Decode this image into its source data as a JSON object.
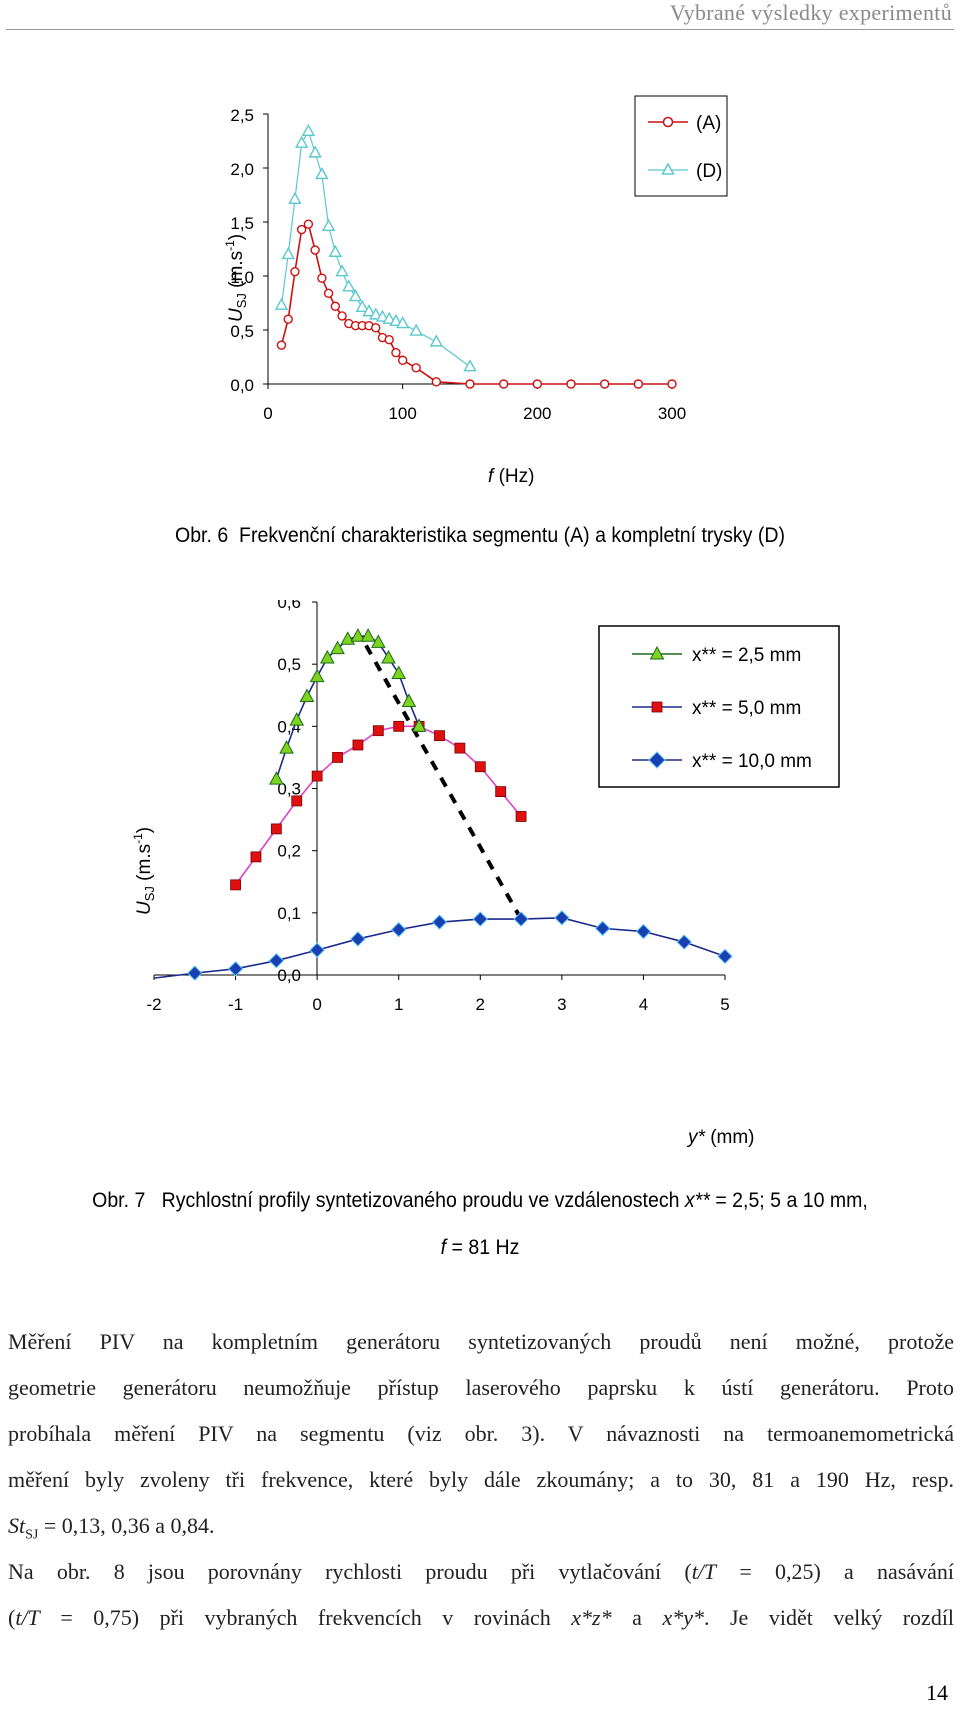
{
  "header": {
    "running_title": "Vybrané výsledky experimentů"
  },
  "figure6": {
    "caption_prefix": "Obr. 6",
    "caption_text": "Frekvenční charakteristika segmentu (A) a kompletní trysky (D)",
    "ylabel_main": "U",
    "ylabel_sub": "SJ",
    "ylabel_unit": "(m.s",
    "ylabel_exp": "-1",
    "ylabel_close": ")",
    "xlabel_var": "f",
    "xlabel_unit": "(Hz)",
    "legend": [
      "(A)",
      "(D)"
    ],
    "colors": {
      "A": "#cc1111",
      "D": "#5bc8cf"
    }
  },
  "figure7": {
    "caption_line1_prefix": "Obr. 7",
    "caption_line1_text": "Rychlostní profily syntetizovaného proudu ve vzdálenostech",
    "caption_line1_var": "x**",
    "caption_line1_rest": "= 2,5; 5 a 10 mm,",
    "caption_line2_var": "f",
    "caption_line2_rest": "= 81 Hz",
    "ylabel_main": "U",
    "ylabel_sub": "SJ",
    "ylabel_unit": "(m.s",
    "ylabel_exp": "-1",
    "ylabel_close": ")",
    "xlabel_var": "y*",
    "xlabel_unit": "(mm)",
    "legend": [
      "x** = 2,5 mm",
      "x** = 5,0 mm",
      "x** = 10,0 mm"
    ],
    "colors": {
      "s1_line": "#1a6b1a",
      "s1_marker": "#7ed321",
      "s2_line": "#e040c8",
      "s2_marker": "#e01010",
      "s3_line": "#1a2a8c",
      "s3_marker": "#1a3fb0"
    }
  },
  "chart_data": [
    {
      "type": "line",
      "title": "",
      "xlabel": "f (Hz)",
      "ylabel": "U SJ (m.s-1)",
      "xlim": [
        0,
        300
      ],
      "ylim": [
        0,
        2.5
      ],
      "xticks": [
        "0",
        "100",
        "200",
        "300"
      ],
      "yticks": [
        "0,0",
        "0,5",
        "1,0",
        "1,5",
        "2,0",
        "2,5"
      ],
      "legend_position": "top-right",
      "grid": false,
      "series": [
        {
          "name": "(A)",
          "x": [
            10,
            15,
            20,
            25,
            30,
            35,
            40,
            45,
            50,
            55,
            60,
            65,
            70,
            75,
            80,
            85,
            90,
            95,
            100,
            110,
            125,
            150,
            175,
            200,
            225,
            250,
            275,
            300
          ],
          "y": [
            0.36,
            0.6,
            1.04,
            1.43,
            1.48,
            1.24,
            0.98,
            0.84,
            0.72,
            0.63,
            0.56,
            0.54,
            0.54,
            0.54,
            0.52,
            0.43,
            0.41,
            0.29,
            0.22,
            0.15,
            0.02,
            0.0,
            0.0,
            0.0,
            0.0,
            0.0,
            0.0,
            0.0
          ]
        },
        {
          "name": "(D)",
          "x": [
            10,
            15,
            20,
            25,
            30,
            35,
            40,
            45,
            50,
            55,
            60,
            65,
            70,
            75,
            80,
            85,
            90,
            95,
            100,
            110,
            125,
            150
          ],
          "y": [
            0.73,
            1.2,
            1.71,
            2.23,
            2.34,
            2.14,
            1.94,
            1.46,
            1.22,
            1.04,
            0.9,
            0.81,
            0.71,
            0.67,
            0.64,
            0.62,
            0.6,
            0.58,
            0.56,
            0.49,
            0.39,
            0.16
          ]
        }
      ]
    },
    {
      "type": "line",
      "title": "",
      "xlabel": "y* (mm)",
      "ylabel": "U SJ (m.s-1)",
      "xlim": [
        -2,
        5
      ],
      "ylim": [
        0,
        0.6
      ],
      "xticks": [
        "-2",
        "-1",
        "0",
        "1",
        "2",
        "3",
        "4",
        "5"
      ],
      "yticks": [
        "0,0",
        "0,1",
        "0,2",
        "0,3",
        "0,4",
        "0,5",
        "0,6"
      ],
      "legend_position": "top-right",
      "grid": false,
      "series": [
        {
          "name": "x** = 2,5 mm",
          "x": [
            -0.5,
            -0.375,
            -0.25,
            -0.125,
            0,
            0.125,
            0.25,
            0.375,
            0.5,
            0.625,
            0.75,
            0.875,
            1.0,
            1.125,
            1.25
          ],
          "y": [
            0.315,
            0.365,
            0.41,
            0.448,
            0.48,
            0.51,
            0.525,
            0.54,
            0.545,
            0.545,
            0.535,
            0.51,
            0.485,
            0.44,
            0.4
          ]
        },
        {
          "name": "x** = 5,0 mm",
          "x": [
            -1,
            -0.75,
            -0.5,
            -0.25,
            0,
            0.25,
            0.5,
            0.75,
            1.0,
            1.25,
            1.5,
            1.75,
            2.0,
            2.25,
            2.5
          ],
          "y": [
            0.145,
            0.19,
            0.235,
            0.28,
            0.32,
            0.35,
            0.37,
            0.393,
            0.4,
            0.4,
            0.385,
            0.365,
            0.335,
            0.295,
            0.255
          ]
        },
        {
          "name": "x** = 10,0 mm",
          "x": [
            -2,
            -1.5,
            -1,
            -0.5,
            0,
            0.5,
            1.0,
            1.5,
            2.0,
            2.5,
            3.0,
            3.5,
            4.0,
            4.5,
            5.0
          ],
          "y": [
            -0.005,
            0.003,
            0.01,
            0.023,
            0.04,
            0.058,
            0.073,
            0.085,
            0.09,
            0.09,
            0.092,
            0.075,
            0.07,
            0.053,
            0.03
          ]
        }
      ],
      "annotations": [
        {
          "type": "dashed-line",
          "from": {
            "x": 0.6,
            "y": 0.53
          },
          "to": {
            "x": 2.5,
            "y": 0.09
          }
        }
      ]
    }
  ],
  "body": {
    "para1_lines": [
      "Měření PIV na kompletním generátoru syntetizovaných proudů není možné, protože",
      "geometrie generátoru neumožňuje přístup laserového paprsku k ústí generátoru. Proto",
      "probíhala měření PIV na segmentu (viz obr. 3). V návaznosti na termoanemometrická",
      "měření byly zvoleny tři frekvence, které byly dále zkoumány; a to 30, 81 a 190 Hz, resp."
    ],
    "para1_end_var": "St",
    "para1_end_sub": "SJ",
    "para1_end_rest": "= 0,13, 0,36 a 0,84.",
    "para2_line1_start": "Na obr. 8 jsou porovnány rychlosti proudu při vytlačování (",
    "para2_line1_var": "t/T",
    "para2_line1_rest": "= 0,25) a nasávání",
    "para2_line2_open": "(",
    "para2_line2_var": "t/T",
    "para2_line2_mid": "= 0,75) při vybraných frekvencích v rovinách",
    "para2_line2_v1": "x*z*",
    "para2_line2_a": "a",
    "para2_line2_v2": "x*y*",
    "para2_line2_end": ". Je vidět velký rozdíl"
  },
  "page_number": "14"
}
